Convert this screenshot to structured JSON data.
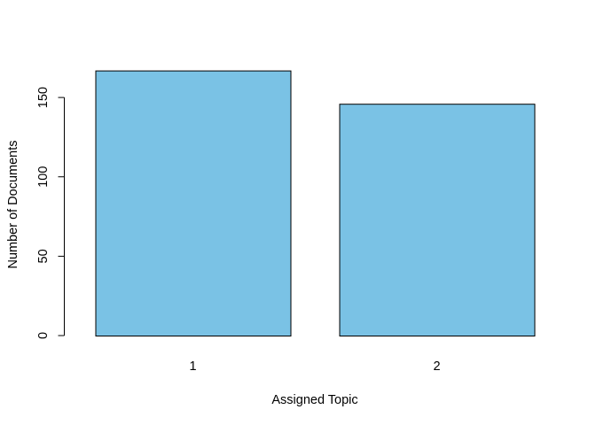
{
  "chart_data": {
    "type": "bar",
    "categories": [
      "1",
      "2"
    ],
    "values": [
      167,
      146
    ],
    "title": "",
    "xlabel": "Assigned Topic",
    "ylabel": "Number of Documents",
    "yticks": [
      "0",
      "50",
      "100",
      "150"
    ],
    "ylim": [
      0,
      175
    ],
    "grid": false,
    "legend": "none",
    "bar_color": "#7AC2E5",
    "bar_border_color": "#000000"
  }
}
